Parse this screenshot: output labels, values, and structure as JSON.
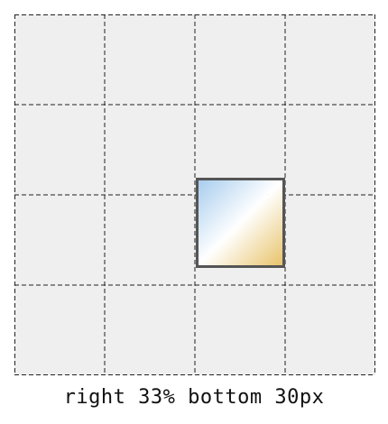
{
  "caption": "right 33% bottom 30px",
  "grid": {
    "columns": 4,
    "rows": 4
  },
  "marker": {
    "column": 3,
    "row": 3,
    "gradient": {
      "sky_color": "#a8cdee",
      "light_color": "#ffffff",
      "sand_color": "#e8c36a"
    },
    "border_color": "#555555"
  },
  "colors": {
    "background": "#efefef",
    "grid_line": "#222222"
  }
}
